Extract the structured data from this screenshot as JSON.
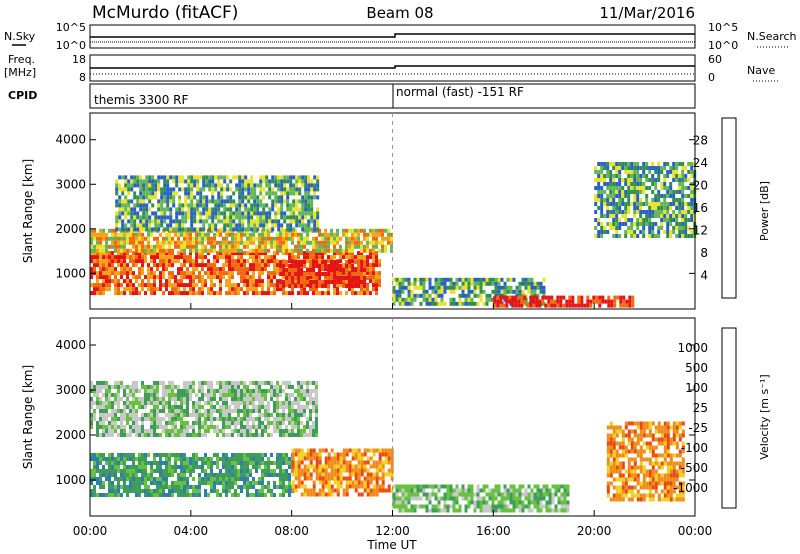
{
  "header": {
    "station": "McMurdo (fitACF)",
    "beam": "Beam 08",
    "date": "11/Mar/2016"
  },
  "top_panels": {
    "nsky_label": "N.Sky",
    "nsky_ticks": [
      "10^5",
      "10^0"
    ],
    "nsearch_label": "N.Search",
    "nsearch_ticks": [
      "10^5",
      "10^0"
    ],
    "freq_label": "Freq.",
    "freq_unit": "[MHz]",
    "freq_ticks": [
      "18",
      "8"
    ],
    "nave_label": "Nave",
    "nave_ticks": [
      "60",
      "0"
    ],
    "cpid_label": "CPID",
    "cpid_modes": [
      "themis 3300 RF",
      "normal (fast) -151 RF"
    ]
  },
  "x_axis": {
    "title": "Time UT",
    "ticks": [
      "00:00",
      "04:00",
      "08:00",
      "12:00",
      "16:00",
      "20:00",
      "00:00"
    ]
  },
  "chart_data": [
    {
      "type": "heatmap",
      "name": "power-panel",
      "ylabel": "Slant Range [km]",
      "ylim": [
        200,
        4600
      ],
      "yticks": [
        "1000",
        "2000",
        "3000",
        "4000"
      ],
      "xlim_hours": [
        0,
        24
      ],
      "colorbar": {
        "title": "Power [dB]",
        "ticks": [
          "4",
          "8",
          "12",
          "16",
          "20",
          "24",
          "28"
        ],
        "colors": [
          "#1a1aff",
          "#2a5fc8",
          "#2f8f4f",
          "#63b55a",
          "#e7e32a",
          "#f2a31a",
          "#f06a12",
          "#e41414"
        ]
      },
      "regions": [
        {
          "t": [
            0.0,
            11.5
          ],
          "r": [
            600,
            1500
          ],
          "level": "high"
        },
        {
          "t": [
            7.5,
            11.0
          ],
          "r": [
            700,
            1300
          ],
          "level": "max"
        },
        {
          "t": [
            0.0,
            12.0
          ],
          "r": [
            1500,
            2000
          ],
          "level": "medium"
        },
        {
          "t": [
            1.0,
            9.0
          ],
          "r": [
            2000,
            3200
          ],
          "level": "low"
        },
        {
          "t": [
            12.0,
            18.0
          ],
          "r": [
            300,
            900
          ],
          "level": "low"
        },
        {
          "t": [
            16.0,
            21.5
          ],
          "r": [
            250,
            500
          ],
          "level": "max"
        },
        {
          "t": [
            20.0,
            24.0
          ],
          "r": [
            1800,
            3500
          ],
          "level": "low"
        }
      ]
    },
    {
      "type": "heatmap",
      "name": "velocity-panel",
      "ylabel": "Slant Range [km]",
      "ylim": [
        200,
        4600
      ],
      "yticks": [
        "1000",
        "2000",
        "3000",
        "4000"
      ],
      "xlim_hours": [
        0,
        24
      ],
      "colorbar": {
        "title": "Velocity [m s⁻¹]",
        "ticks": [
          "1000",
          "500",
          "100",
          "25",
          "-25",
          "-100",
          "-500",
          "-1000"
        ],
        "colors": [
          "#2a4fc8",
          "#2e7fb0",
          "#3f9c5a",
          "#66c23f",
          "#c8c8c8",
          "#f0d020",
          "#f08c1a",
          "#e84a12",
          "#e41414"
        ]
      },
      "regions": [
        {
          "t": [
            0.0,
            8.0
          ],
          "r": [
            700,
            1600
          ],
          "v": "100 to 500"
        },
        {
          "t": [
            8.0,
            12.0
          ],
          "r": [
            700,
            1700
          ],
          "v": "-100 to -500"
        },
        {
          "t": [
            0.0,
            9.0
          ],
          "r": [
            2000,
            3200
          ],
          "v": "-25 to 100"
        },
        {
          "t": [
            20.5,
            23.5
          ],
          "r": [
            600,
            2300
          ],
          "v": "-100 to -500"
        },
        {
          "t": [
            12.0,
            19.0
          ],
          "r": [
            300,
            900
          ],
          "v": "25 to 100"
        }
      ]
    }
  ]
}
